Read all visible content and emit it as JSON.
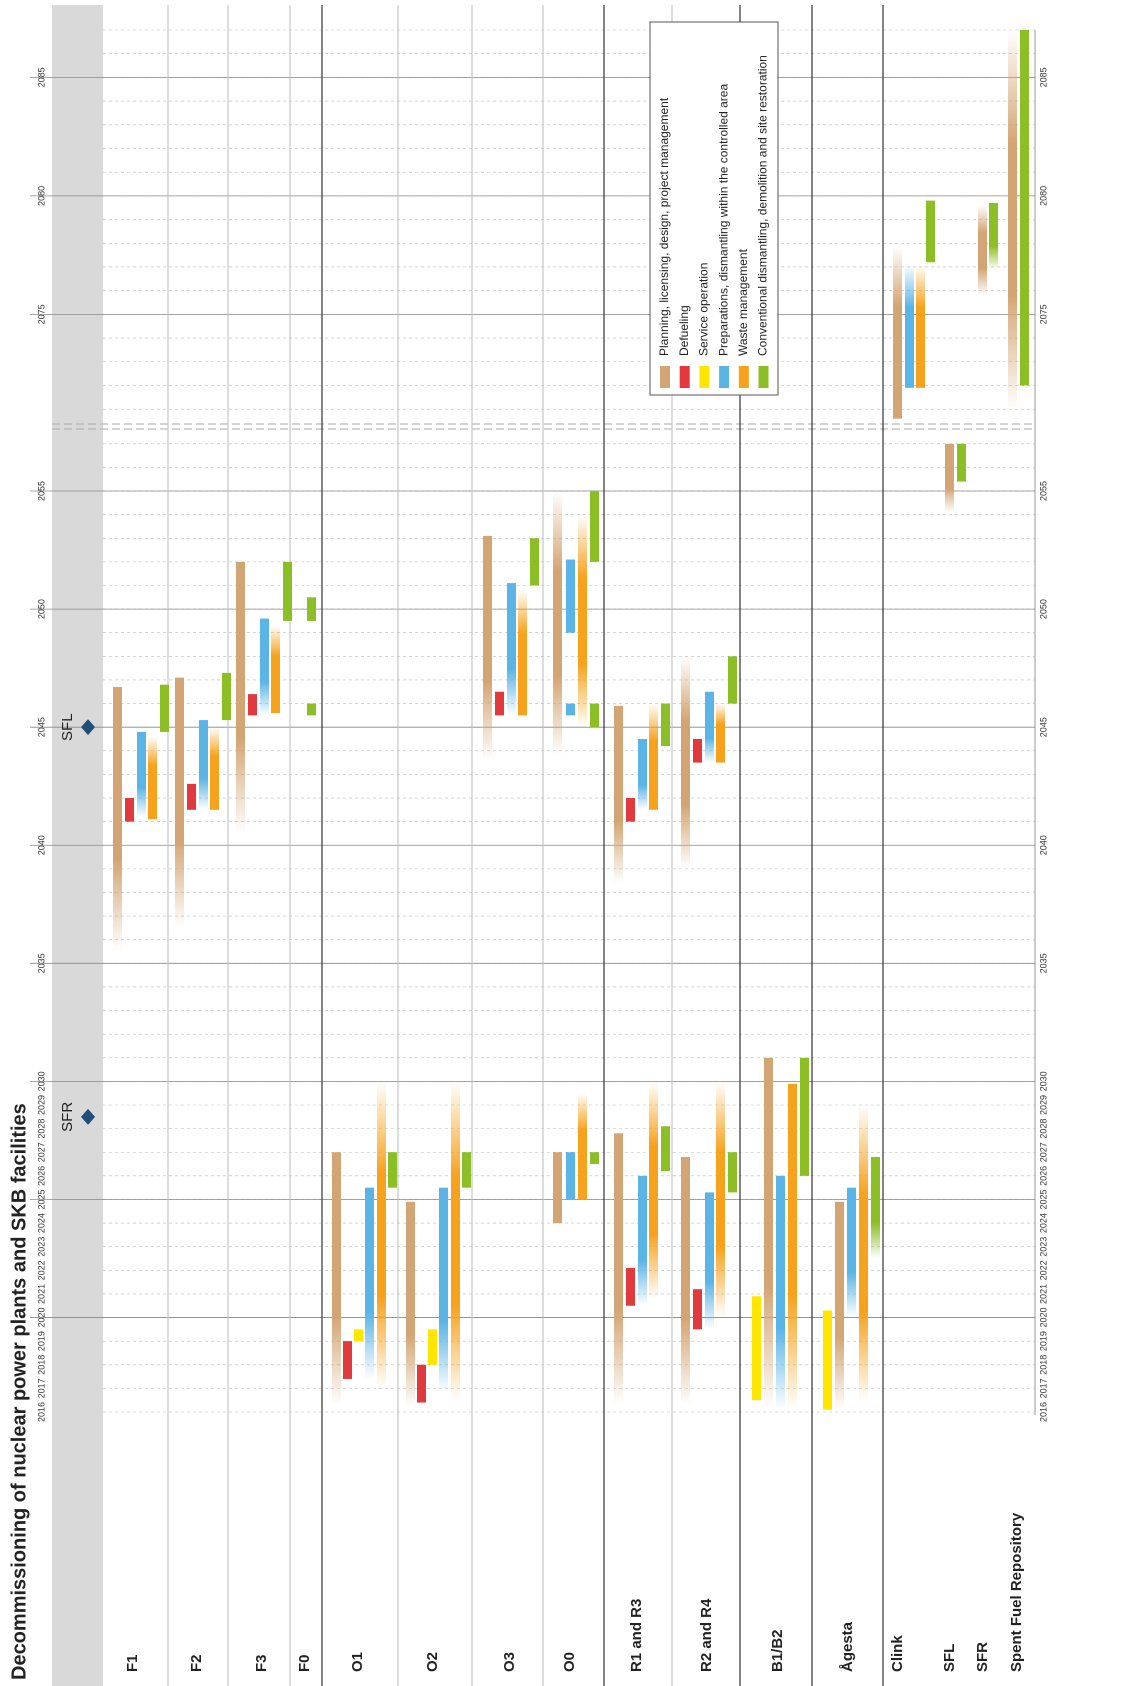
{
  "chart_data": {
    "type": "gantt",
    "title": "Decommissioning of nuclear power plants and SKB facilities",
    "categories": [
      "F1",
      "F2",
      "F3",
      "F0",
      "O1",
      "O2",
      "O3",
      "O0",
      "R1 and R3",
      "R2 and R4",
      "B1/B2",
      "Ågesta",
      "Clink",
      "SFL",
      "SFR",
      "Spent Fuel Repository"
    ],
    "phases": [
      {
        "name": "Planning, licensing, design, project management",
        "color": "#d4a574"
      },
      {
        "name": "Defueling",
        "color": "#e0393e"
      },
      {
        "name": "Service operation",
        "color": "#ffe600"
      },
      {
        "name": "Preparations, dismantling within the controlled area",
        "color": "#5ab4e5"
      },
      {
        "name": "Waste management",
        "color": "#f6a21c"
      },
      {
        "name": "Conventional dismantling, demolition and site restoration",
        "color": "#8cbf26"
      }
    ],
    "axis_segments": [
      [
        2016,
        2057.5
      ],
      [
        2070.5,
        2087
      ]
    ],
    "xticks": [
      2016,
      2017,
      2018,
      2019,
      2020,
      2021,
      2022,
      2023,
      2024,
      2025,
      2026,
      2027,
      2028,
      2029,
      2030,
      2035,
      2040,
      2045,
      2050,
      2055,
      2075,
      2080,
      2085
    ],
    "minor_grid": true,
    "legend_position": "upper-right",
    "milestones": [
      {
        "label": "SFR",
        "year": 2028.5
      },
      {
        "label": "SFL",
        "year": 2045
      }
    ],
    "milestone_color": "#1f4e79",
    "bars": [
      {
        "row": 0,
        "phase": 0,
        "start": 2035.5,
        "end": 2046.7,
        "fade": "start"
      },
      {
        "row": 0,
        "phase": 1,
        "start": 2041,
        "end": 2042
      },
      {
        "row": 0,
        "phase": 3,
        "start": 2041.2,
        "end": 2044.8,
        "fade": "start"
      },
      {
        "row": 0,
        "phase": 4,
        "start": 2041.1,
        "end": 2044.6,
        "fade": "end"
      },
      {
        "row": 0,
        "phase": 5,
        "start": 2044.8,
        "end": 2046.8
      },
      {
        "row": 1,
        "phase": 0,
        "start": 2036.5,
        "end": 2047.1,
        "fade": "start"
      },
      {
        "row": 1,
        "phase": 1,
        "start": 2041.5,
        "end": 2042.6
      },
      {
        "row": 1,
        "phase": 3,
        "start": 2041.5,
        "end": 2045.3,
        "fade": "start"
      },
      {
        "row": 1,
        "phase": 4,
        "start": 2041.5,
        "end": 2045,
        "fade": "end"
      },
      {
        "row": 1,
        "phase": 5,
        "start": 2045.3,
        "end": 2047.3
      },
      {
        "row": 2,
        "phase": 0,
        "start": 2040.5,
        "end": 2052,
        "fade": "start"
      },
      {
        "row": 2,
        "phase": 1,
        "start": 2045.5,
        "end": 2046.4
      },
      {
        "row": 2,
        "phase": 3,
        "start": 2045.5,
        "end": 2049.6,
        "fade": "start"
      },
      {
        "row": 2,
        "phase": 4,
        "start": 2045.6,
        "end": 2049.3,
        "fade": "end"
      },
      {
        "row": 2,
        "phase": 5,
        "start": 2049.5,
        "end": 2052
      },
      {
        "row": 3,
        "phase": 5,
        "start": 2049.5,
        "end": 2050.5
      },
      {
        "row": 3,
        "phase": 5,
        "start": 2045.5,
        "end": 2046
      },
      {
        "row": 4,
        "phase": 0,
        "start": 2016.3,
        "end": 2027,
        "fade": "start"
      },
      {
        "row": 4,
        "phase": 1,
        "start": 2017.4,
        "end": 2019
      },
      {
        "row": 4,
        "phase": 2,
        "start": 2019,
        "end": 2019.5
      },
      {
        "row": 4,
        "phase": 3,
        "start": 2017.4,
        "end": 2025.5,
        "fade": "start"
      },
      {
        "row": 4,
        "phase": 4,
        "start": 2017,
        "end": 2030,
        "fade": "both"
      },
      {
        "row": 4,
        "phase": 5,
        "start": 2025.5,
        "end": 2027
      },
      {
        "row": 5,
        "phase": 0,
        "start": 2016.2,
        "end": 2024.9,
        "fade": "start"
      },
      {
        "row": 5,
        "phase": 1,
        "start": 2016.4,
        "end": 2018
      },
      {
        "row": 5,
        "phase": 2,
        "start": 2018,
        "end": 2019.5
      },
      {
        "row": 5,
        "phase": 3,
        "start": 2016.8,
        "end": 2025.5,
        "fade": "start"
      },
      {
        "row": 5,
        "phase": 4,
        "start": 2016.5,
        "end": 2030,
        "fade": "both"
      },
      {
        "row": 5,
        "phase": 5,
        "start": 2025.5,
        "end": 2027
      },
      {
        "row": 6,
        "phase": 0,
        "start": 2043.6,
        "end": 2053.1,
        "fade": "start"
      },
      {
        "row": 6,
        "phase": 1,
        "start": 2045.5,
        "end": 2046.5
      },
      {
        "row": 6,
        "phase": 3,
        "start": 2045.5,
        "end": 2051.1,
        "fade": "start"
      },
      {
        "row": 6,
        "phase": 4,
        "start": 2045.5,
        "end": 2050.8,
        "fade": "end"
      },
      {
        "row": 6,
        "phase": 5,
        "start": 2051,
        "end": 2053
      },
      {
        "row": 7,
        "phase": 0,
        "start": 2024,
        "end": 2027
      },
      {
        "row": 7,
        "phase": 3,
        "start": 2025,
        "end": 2027
      },
      {
        "row": 7,
        "phase": 4,
        "start": 2025,
        "end": 2029.5,
        "fade": "end"
      },
      {
        "row": 7,
        "phase": 5,
        "start": 2026.5,
        "end": 2027
      },
      {
        "row": 7,
        "phase": 0,
        "start": 2043.8,
        "end": 2055,
        "fade": "both"
      },
      {
        "row": 7,
        "phase": 3,
        "start": 2049,
        "end": 2052.1
      },
      {
        "row": 7,
        "phase": 3,
        "start": 2045.5,
        "end": 2046
      },
      {
        "row": 7,
        "phase": 4,
        "start": 2045,
        "end": 2054,
        "fade": "both"
      },
      {
        "row": 7,
        "phase": 5,
        "start": 2052,
        "end": 2055
      },
      {
        "row": 7,
        "phase": 5,
        "start": 2045,
        "end": 2046
      },
      {
        "row": 8,
        "phase": 0,
        "start": 2016.3,
        "end": 2027.8,
        "fade": "start"
      },
      {
        "row": 8,
        "phase": 1,
        "start": 2020.5,
        "end": 2022.1
      },
      {
        "row": 8,
        "phase": 3,
        "start": 2020.5,
        "end": 2026,
        "fade": "start"
      },
      {
        "row": 8,
        "phase": 4,
        "start": 2020.8,
        "end": 2030,
        "fade": "both"
      },
      {
        "row": 8,
        "phase": 5,
        "start": 2026.2,
        "end": 2028.1
      },
      {
        "row": 8,
        "phase": 0,
        "start": 2038.4,
        "end": 2045.9,
        "fade": "start"
      },
      {
        "row": 8,
        "phase": 1,
        "start": 2041,
        "end": 2042
      },
      {
        "row": 8,
        "phase": 3,
        "start": 2041.5,
        "end": 2044.5,
        "fade": "start"
      },
      {
        "row": 8,
        "phase": 4,
        "start": 2041.5,
        "end": 2046,
        "fade": "end"
      },
      {
        "row": 8,
        "phase": 5,
        "start": 2044.2,
        "end": 2046
      },
      {
        "row": 9,
        "phase": 0,
        "start": 2016.3,
        "end": 2026.8,
        "fade": "start"
      },
      {
        "row": 9,
        "phase": 1,
        "start": 2019.5,
        "end": 2021.2
      },
      {
        "row": 9,
        "phase": 3,
        "start": 2019.5,
        "end": 2025.3,
        "fade": "start"
      },
      {
        "row": 9,
        "phase": 4,
        "start": 2020,
        "end": 2030,
        "fade": "both"
      },
      {
        "row": 9,
        "phase": 5,
        "start": 2025.3,
        "end": 2027
      },
      {
        "row": 9,
        "phase": 0,
        "start": 2039,
        "end": 2048,
        "fade": "both"
      },
      {
        "row": 9,
        "phase": 1,
        "start": 2043.5,
        "end": 2044.5
      },
      {
        "row": 9,
        "phase": 3,
        "start": 2043.5,
        "end": 2046.5,
        "fade": "start"
      },
      {
        "row": 9,
        "phase": 4,
        "start": 2043.5,
        "end": 2046,
        "fade": "end"
      },
      {
        "row": 9,
        "phase": 5,
        "start": 2046,
        "end": 2048
      },
      {
        "row": 10,
        "phase": 2,
        "start": 2016.5,
        "end": 2020.9
      },
      {
        "row": 10,
        "phase": 0,
        "start": 2016.1,
        "end": 2031,
        "fade": "start"
      },
      {
        "row": 10,
        "phase": 3,
        "start": 2016.1,
        "end": 2026,
        "fade": "start"
      },
      {
        "row": 10,
        "phase": 4,
        "start": 2016.1,
        "end": 2029.9,
        "fade": "start"
      },
      {
        "row": 10,
        "phase": 5,
        "start": 2026,
        "end": 2031
      },
      {
        "row": 11,
        "phase": 2,
        "start": 2016.1,
        "end": 2020.3
      },
      {
        "row": 11,
        "phase": 0,
        "start": 2016.1,
        "end": 2024.9,
        "fade": "start"
      },
      {
        "row": 11,
        "phase": 3,
        "start": 2020,
        "end": 2025.5,
        "fade": "start"
      },
      {
        "row": 11,
        "phase": 4,
        "start": 2016.5,
        "end": 2029,
        "fade": "both"
      },
      {
        "row": 11,
        "phase": 5,
        "start": 2022.5,
        "end": 2026.8,
        "fade": "start"
      },
      {
        "row": 12,
        "phase": 0,
        "start": 2070.6,
        "end": 2077.9,
        "fade": "end"
      },
      {
        "row": 12,
        "phase": 3,
        "start": 2071.9,
        "end": 2077.1,
        "fade": "end"
      },
      {
        "row": 12,
        "phase": 4,
        "start": 2071.9,
        "end": 2077.1,
        "fade": "end"
      },
      {
        "row": 12,
        "phase": 5,
        "start": 2077.2,
        "end": 2079.8
      },
      {
        "row": 13,
        "phase": 0,
        "start": 2054.1,
        "end": 2057,
        "fade": "start"
      },
      {
        "row": 13,
        "phase": 5,
        "start": 2055.4,
        "end": 2057
      },
      {
        "row": 14,
        "phase": 0,
        "start": 2075.8,
        "end": 2079.6,
        "fade": "both"
      },
      {
        "row": 14,
        "phase": 5,
        "start": 2076.9,
        "end": 2079.7,
        "fade": "start"
      },
      {
        "row": 15,
        "phase": 0,
        "start": 2071,
        "end": 2087,
        "fade": "both"
      },
      {
        "row": 15,
        "phase": 5,
        "start": 2072,
        "end": 2087
      }
    ]
  }
}
